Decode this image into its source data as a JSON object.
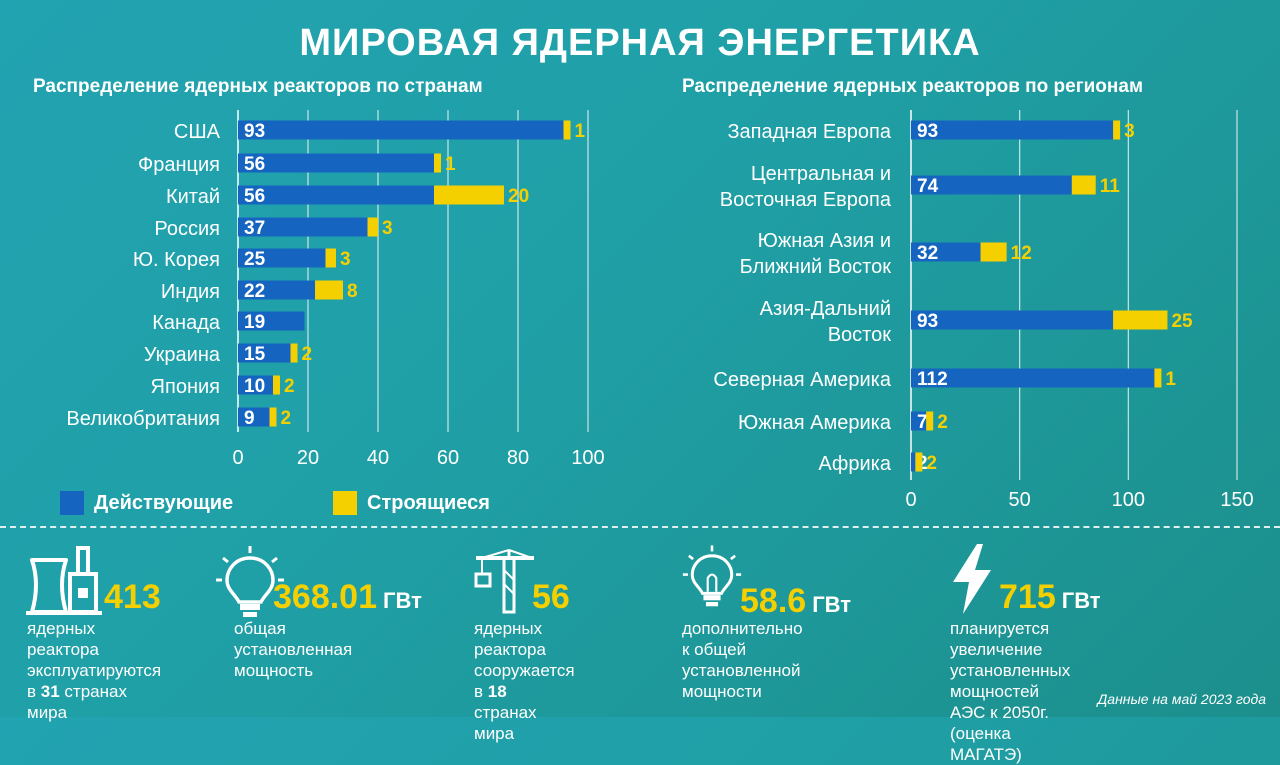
{
  "title": "МИРОВАЯ ЯДЕРНАЯ ЭНЕРГЕТИКА",
  "colors": {
    "operating": "#1565c0",
    "construction": "#f5d000",
    "accent": "#f5d000"
  },
  "legend": {
    "operating": "Действующие",
    "construction": "Строящиеся"
  },
  "chart_data": [
    {
      "type": "bar",
      "orientation": "horizontal",
      "stacked": true,
      "title": "Распределение ядерных реакторов по странам",
      "categories": [
        "США",
        "Франция",
        "Китай",
        "Россия",
        "Ю. Корея",
        "Индия",
        "Канада",
        "Украина",
        "Япония",
        "Великобритания"
      ],
      "series": [
        {
          "name": "Действующие",
          "values": [
            93,
            56,
            56,
            37,
            25,
            22,
            19,
            15,
            10,
            9
          ]
        },
        {
          "name": "Строящиеся",
          "values": [
            1,
            1,
            20,
            3,
            3,
            8,
            0,
            2,
            2,
            2
          ]
        }
      ],
      "xlim": [
        0,
        100
      ],
      "xticks": [
        0,
        20,
        40,
        60,
        80,
        100
      ],
      "grid": true
    },
    {
      "type": "bar",
      "orientation": "horizontal",
      "stacked": true,
      "title": "Распределение ядерных реакторов по регионам",
      "categories": [
        [
          "Западная Европа"
        ],
        [
          "Центральная и",
          "Восточная Европа"
        ],
        [
          "Южная Азия и",
          "Ближний Восток"
        ],
        [
          "Азия-Дальний",
          "Восток"
        ],
        [
          "Северная Америка"
        ],
        [
          "Южная Америка"
        ],
        [
          "Африка"
        ]
      ],
      "series": [
        {
          "name": "Действующие",
          "values": [
            93,
            74,
            32,
            93,
            112,
            7,
            2
          ]
        },
        {
          "name": "Строящиеся",
          "values": [
            3,
            11,
            12,
            25,
            1,
            2,
            2
          ]
        }
      ],
      "xlim": [
        0,
        150
      ],
      "xticks": [
        0,
        50,
        100,
        150
      ],
      "grid": true
    }
  ],
  "stats": [
    {
      "icon": "power-plant-icon",
      "number": "413",
      "unit": "",
      "desc": [
        "ядерных реактора",
        "эксплуатируются",
        "в {31} странах мира"
      ]
    },
    {
      "icon": "light-bulb-icon",
      "number": "368.01",
      "unit": "ГВт",
      "desc": [
        "общая установленная",
        "мощность"
      ]
    },
    {
      "icon": "construction-crane-icon",
      "number": "56",
      "unit": "",
      "desc": [
        "ядерных реактора",
        "сооружается в {18}",
        "странах мира"
      ]
    },
    {
      "icon": "light-bulb-icon",
      "number": "58.6",
      "unit": "ГВт",
      "desc": [
        "дополнительно к общей",
        "установленной",
        "мощности"
      ]
    },
    {
      "icon": "lightning-icon",
      "number": "715",
      "unit": "ГВт",
      "desc": [
        "планируется увеличение",
        "установленных мощностей",
        "АЭС к 2050г. (оценка МАГАТЭ)"
      ]
    }
  ],
  "footnote": "Данные на май 2023 года"
}
